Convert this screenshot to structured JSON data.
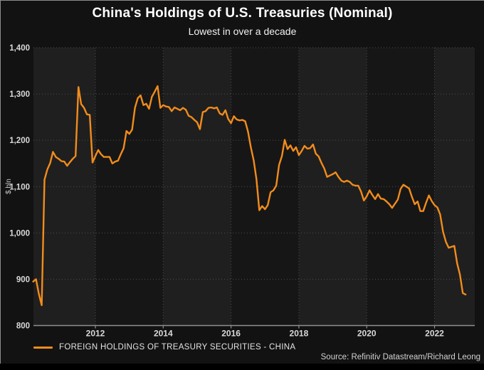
{
  "header": {
    "title": "China's Holdings of U.S. Treasuries (Nominal)",
    "subtitle": "Lowest in over a decade"
  },
  "legend": {
    "label": "FOREIGN HOLDINGS OF TREASURY SECURITIES - CHINA"
  },
  "source": "Source: Refinitiv Datastream/Richard Leong",
  "colors": {
    "line": "#f28c1c",
    "canvas_bg": "#121212",
    "band_light": "#1f1f1f",
    "band_dark": "#161616",
    "grid": "#4d4d4d",
    "axis": "#909090",
    "tick_text": "#d9d9d9",
    "axis_title_text": "#c9c9c9",
    "title_text": "#ffffff"
  },
  "chart_data": {
    "type": "line",
    "title": "China's Holdings of U.S. Treasuries (Nominal)",
    "subtitle": "Lowest in over a decade",
    "xlabel": "",
    "ylabel": "$ bln",
    "ylim": [
      800,
      1400
    ],
    "y_ticks": [
      800,
      900,
      1000,
      1100,
      1200,
      1300,
      1400
    ],
    "x_ticks": [
      2012,
      2014,
      2016,
      2018,
      2020,
      2022
    ],
    "x_range": [
      2010.17,
      2023.2
    ],
    "grid": "dotted",
    "legend_position": "bottom-left",
    "series": [
      {
        "name": "FOREIGN HOLDINGS OF TREASURY SECURITIES - CHINA",
        "start_year": 2010,
        "start_month": 3,
        "frequency": "monthly",
        "values": [
          895,
          900,
          868,
          844,
          1115,
          1137,
          1151,
          1175,
          1164,
          1160,
          1155,
          1154,
          1145,
          1153,
          1160,
          1166,
          1315,
          1278,
          1270,
          1256,
          1255,
          1152,
          1166,
          1179,
          1170,
          1164,
          1164,
          1164,
          1150,
          1154,
          1156,
          1170,
          1183,
          1220,
          1214,
          1223,
          1270,
          1291,
          1297,
          1276,
          1279,
          1268,
          1294,
          1305,
          1317,
          1270,
          1276,
          1273,
          1272,
          1263,
          1271,
          1268,
          1265,
          1270,
          1266,
          1253,
          1250,
          1244,
          1239,
          1224,
          1261,
          1263,
          1270,
          1271,
          1269,
          1271,
          1258,
          1255,
          1265,
          1246,
          1237,
          1252,
          1245,
          1243,
          1244,
          1241,
          1219,
          1185,
          1157,
          1116,
          1049,
          1058,
          1051,
          1060,
          1088,
          1092,
          1102,
          1147,
          1166,
          1201,
          1181,
          1189,
          1177,
          1185,
          1168,
          1177,
          1188,
          1182,
          1183,
          1191,
          1171,
          1165,
          1151,
          1139,
          1121,
          1124,
          1127,
          1131,
          1121,
          1113,
          1110,
          1113,
          1110,
          1104,
          1102,
          1102,
          1089,
          1070,
          1079,
          1092,
          1082,
          1073,
          1084,
          1074,
          1073,
          1068,
          1062,
          1054,
          1063,
          1072,
          1095,
          1104,
          1100,
          1096,
          1078,
          1062,
          1068,
          1047,
          1047,
          1065,
          1081,
          1069,
          1060,
          1055,
          1040,
          1003,
          981,
          968,
          970,
          972,
          934,
          910,
          870,
          867
        ]
      }
    ]
  }
}
